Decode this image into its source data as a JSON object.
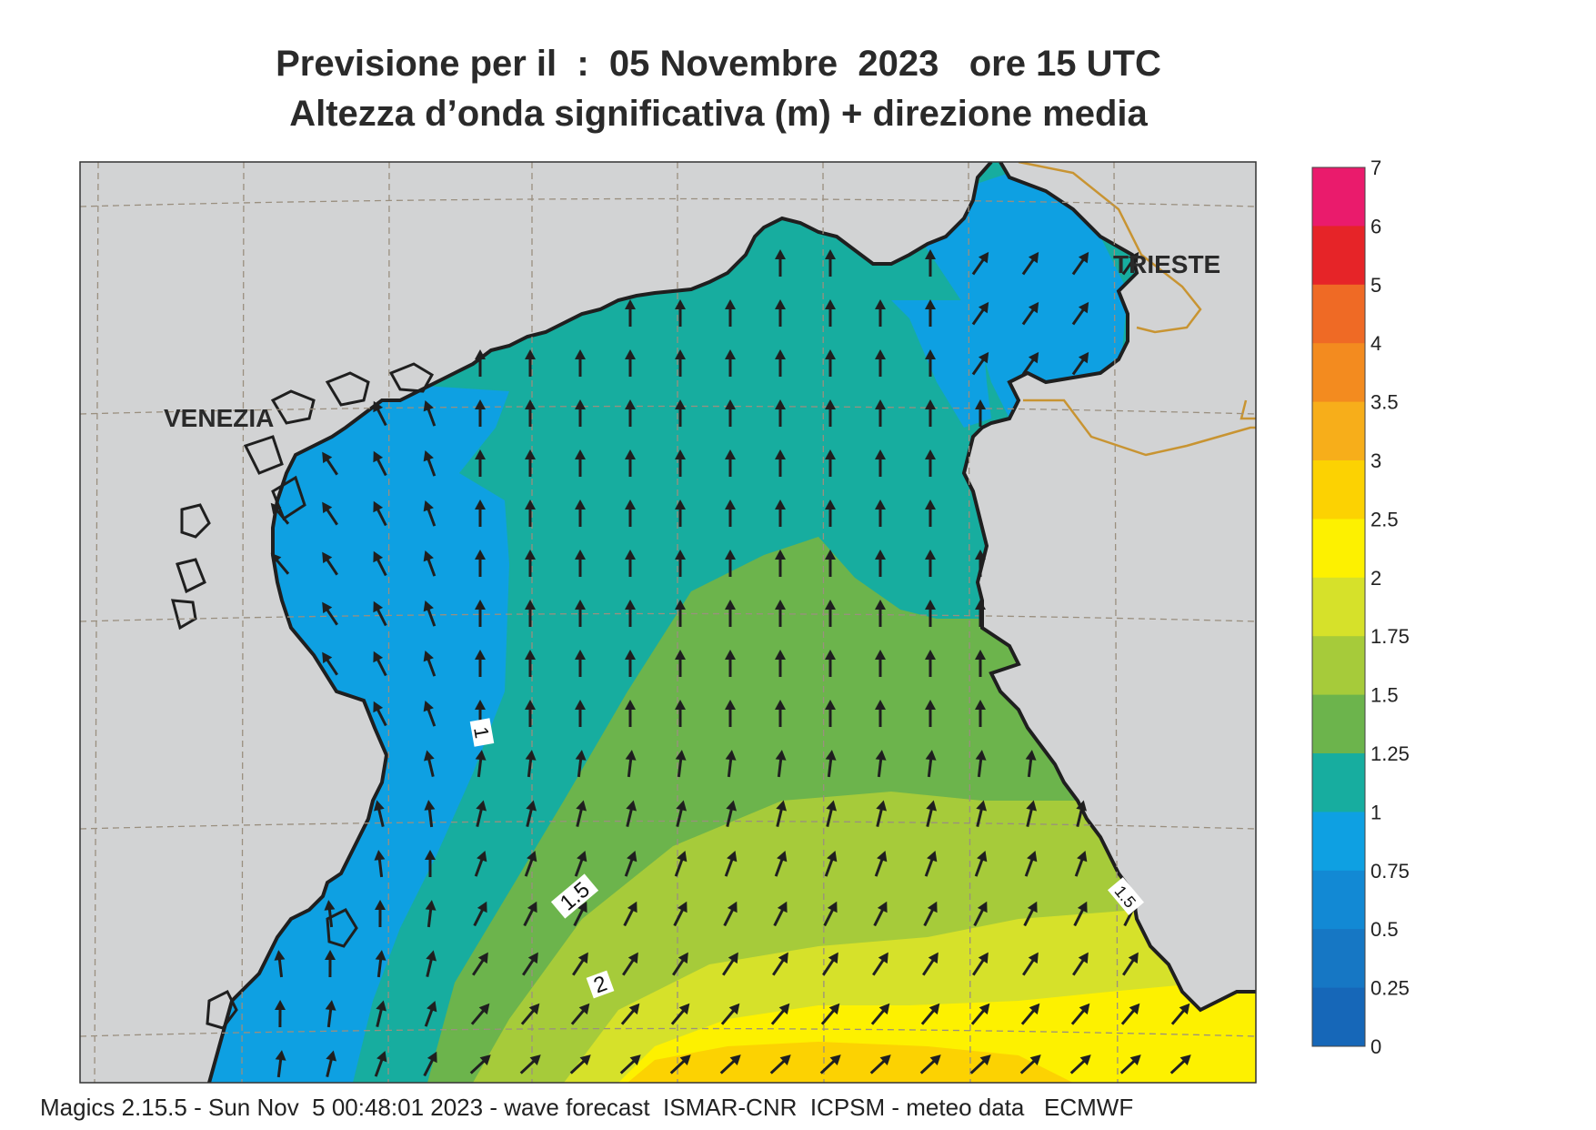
{
  "title": {
    "line1": "Previsione per il  :  05 Novembre  2023   ore 15 UTC",
    "line2": "Altezza d’onda significativa (m) + direzione media"
  },
  "cities": [
    {
      "name": "VENEZIA"
    },
    {
      "name": "TRIESTE"
    }
  ],
  "contour_labels": [
    "1",
    "1.5",
    "2",
    "1.5"
  ],
  "legend": {
    "levels": [
      "7",
      "6",
      "5",
      "4",
      "3.5",
      "3",
      "2.5",
      "2",
      "1.75",
      "1.5",
      "1.25",
      "1",
      "0.75",
      "0.5",
      "0.25",
      "0"
    ],
    "colors": [
      "#ea1b6c",
      "#e62428",
      "#ef6a25",
      "#f38b1f",
      "#f7ae1a",
      "#fcd202",
      "#fdf100",
      "#d6e12a",
      "#a6cb3a",
      "#6cb44c",
      "#17ad9f",
      "#0ea0e2",
      "#1289d4",
      "#1677c4",
      "#1667b8"
    ]
  },
  "colors": {
    "land": "#d2d3d4",
    "coast": "#1f1f1f",
    "border": "#c89432",
    "grid": "#9a8f7f"
  },
  "footer": "Magics 2.15.5 - Sun Nov  5 00:48:01 2023 - wave forecast  ISMAR-CNR  ICPSM - meteo data   ECMWF"
}
